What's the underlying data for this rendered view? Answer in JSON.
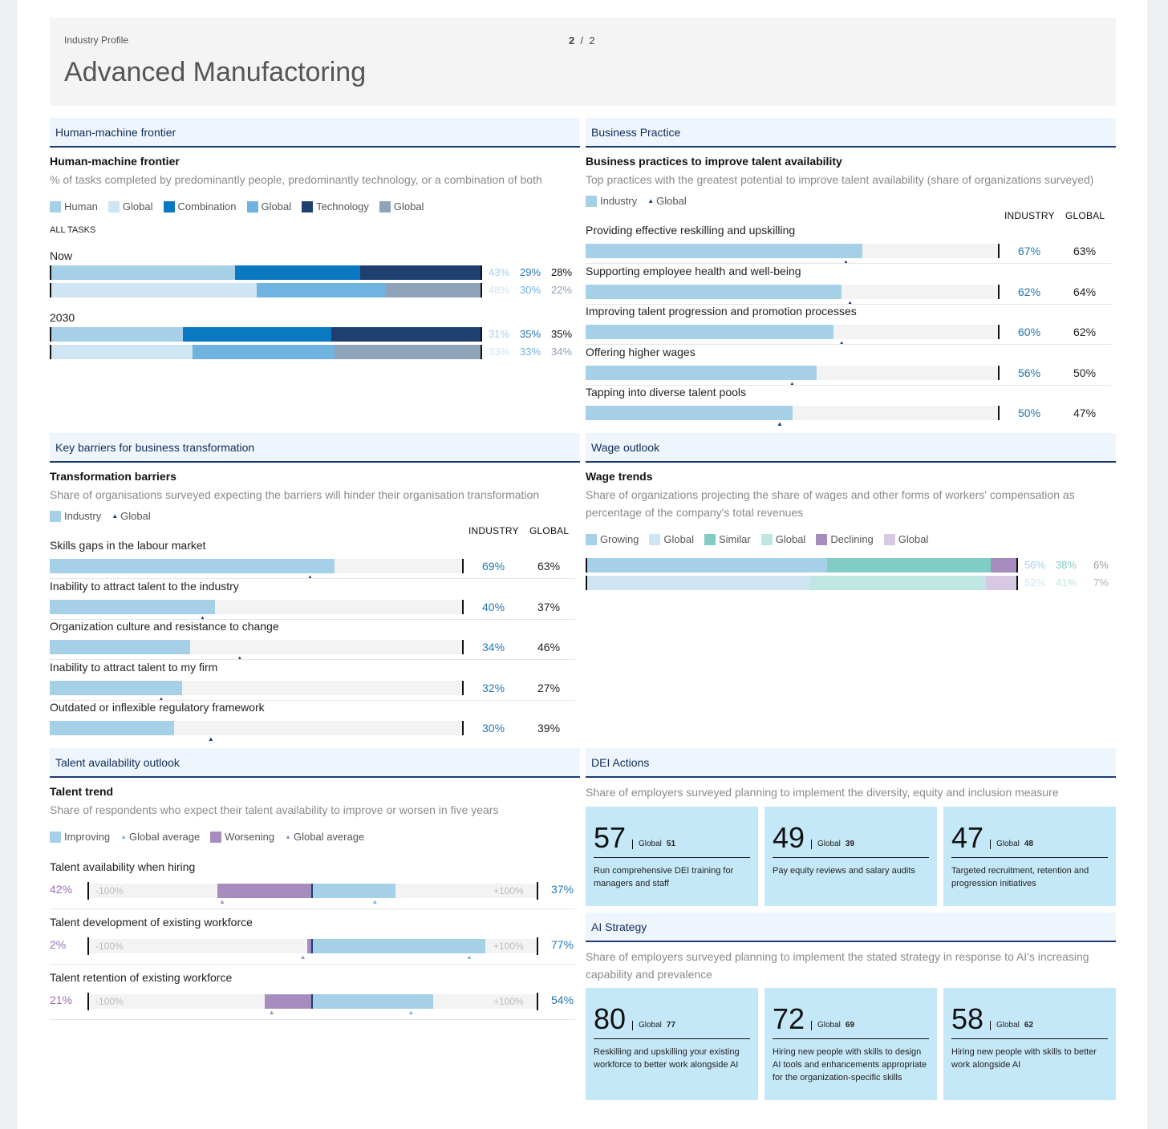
{
  "header": {
    "subtitle": "Industry Profile",
    "title": "Advanced Manufactoring",
    "page_current": "2",
    "page_sep": "/",
    "page_total": "2"
  },
  "hmf": {
    "section_title": "Human-machine frontier",
    "heading": "Human-machine frontier",
    "desc": "% of tasks completed by predominantly people, predominantly technology, or a combination of both",
    "legend": [
      "Human",
      "Global",
      "Combination",
      "Global",
      "Technology",
      "Global"
    ],
    "all_tasks": "ALL TASKS",
    "colors": {
      "human": "#a6cfe8",
      "human_g": "#cfe5f3",
      "combo": "#0a79c2",
      "combo_g": "#6fb3e0",
      "tech": "#1e3f70",
      "tech_g": "#8ea2ba"
    }
  },
  "bp": {
    "section_title": "Business Practice",
    "heading": "Business practices to improve talent availability",
    "desc": "Top practices with the greatest potential to improve talent availability (share of organizations surveyed)",
    "legend_industry": "Industry",
    "legend_global": "Global",
    "col_industry": "INDUSTRY",
    "col_global": "GLOBAL"
  },
  "kb": {
    "section_title": "Key barriers for business transformation",
    "heading": "Transformation barriers",
    "desc": "Share of organisations surveyed expecting the barriers will hinder their organisation transformation",
    "legend_industry": "Industry",
    "legend_global": "Global",
    "col_industry": "INDUSTRY",
    "col_global": "GLOBAL"
  },
  "wo": {
    "section_title": "Wage outlook",
    "heading": "Wage trends",
    "desc": "Share of organizations projecting the share of wages and other forms of workers' compensation as percentage of the company's total revenues",
    "legend": [
      "Growing",
      "Global",
      "Similar",
      "Global",
      "Declining",
      "Global"
    ]
  },
  "ta": {
    "section_title": "Talent availability outlook",
    "heading": "Talent trend",
    "desc": "Share of respondents who expect their talent availability to improve or worsen in five years",
    "legend": [
      "Improving",
      "Global average",
      "Worsening",
      "Global average"
    ],
    "axis_min": "-100%",
    "axis_max": "+100%"
  },
  "dei": {
    "section_title": "DEI Actions",
    "desc": "Share of employers surveyed planning to implement the diversity, equity and inclusion measure",
    "global_word": "Global",
    "cards": [
      {
        "value": "57",
        "global": "51",
        "text": "Run comprehensive DEI training for managers and staff"
      },
      {
        "value": "49",
        "global": "39",
        "text": "Pay equity reviews and salary audits"
      },
      {
        "value": "47",
        "global": "48",
        "text": "Targeted recruitment, retention and progression initiatives"
      }
    ]
  },
  "ai": {
    "section_title": "AI Strategy",
    "desc": "Share of employers surveyed planning to implement the stated strategy in response to AI's increasing capability and prevalence",
    "global_word": "Global",
    "cards": [
      {
        "value": "80",
        "global": "77",
        "text": "Reskilling and upskilling your existing workforce to better work alongside AI"
      },
      {
        "value": "72",
        "global": "69",
        "text": "Hiring new people with skills to design AI tools and enhancements appropriate for the organization-specific skills"
      },
      {
        "value": "58",
        "global": "62",
        "text": "Hiring new people with skills to better work alongside AI"
      }
    ]
  },
  "chart_data": [
    {
      "type": "bar",
      "title": "Human-machine frontier",
      "groups": [
        "Now",
        "2030"
      ],
      "series": [
        {
          "name": "Human",
          "industry": [
            43,
            31
          ],
          "global": [
            48,
            33
          ]
        },
        {
          "name": "Combination",
          "industry": [
            29,
            35
          ],
          "global": [
            30,
            33
          ]
        },
        {
          "name": "Technology",
          "industry": [
            28,
            35
          ],
          "global": [
            22,
            34
          ]
        }
      ],
      "labels": {
        "industry": [
          [
            "43%",
            "29%",
            "28%"
          ],
          [
            "31%",
            "35%",
            "35%"
          ]
        ],
        "global": [
          [
            "48%",
            "30%",
            "22%"
          ],
          [
            "33%",
            "33%",
            "34%"
          ]
        ]
      },
      "stacked": true
    },
    {
      "type": "bar",
      "title": "Business practices to improve talent availability",
      "categories": [
        "Providing effective reskilling and upskilling",
        "Supporting employee health and well-being",
        "Improving talent progression and promotion processes",
        "Offering higher wages",
        "Tapping into diverse talent pools"
      ],
      "series": [
        {
          "name": "Industry",
          "values": [
            67,
            62,
            60,
            56,
            50
          ]
        },
        {
          "name": "Global",
          "values": [
            63,
            64,
            62,
            50,
            47
          ]
        }
      ],
      "labels": {
        "industry": [
          "67%",
          "62%",
          "60%",
          "56%",
          "50%"
        ],
        "global": [
          "63%",
          "64%",
          "62%",
          "50%",
          "47%"
        ]
      },
      "xlim": [
        0,
        100
      ]
    },
    {
      "type": "bar",
      "title": "Transformation barriers",
      "categories": [
        "Skills gaps in the labour market",
        "Inability to attract talent to the industry",
        "Organization culture and resistance to change",
        "Inability to attract talent to my firm",
        "Outdated or inflexible regulatory framework"
      ],
      "series": [
        {
          "name": "Industry",
          "values": [
            69,
            40,
            34,
            32,
            30
          ]
        },
        {
          "name": "Global",
          "values": [
            63,
            37,
            46,
            27,
            39
          ]
        }
      ],
      "labels": {
        "industry": [
          "69%",
          "40%",
          "34%",
          "32%",
          "30%"
        ],
        "global": [
          "63%",
          "37%",
          "46%",
          "27%",
          "39%"
        ]
      },
      "xlim": [
        0,
        100
      ]
    },
    {
      "type": "bar",
      "title": "Wage trends",
      "stacked": true,
      "series": [
        {
          "name": "Growing",
          "industry": 56,
          "global": 52
        },
        {
          "name": "Similar",
          "industry": 38,
          "global": 41
        },
        {
          "name": "Declining",
          "industry": 6,
          "global": 7
        }
      ],
      "labels": {
        "industry": [
          "56%",
          "38%",
          "6%"
        ],
        "global": [
          "52%",
          "41%",
          "7%"
        ]
      },
      "colors": {
        "growing": "#a6cfe8",
        "growing_g": "#cfe5f3",
        "similar": "#7fcdc4",
        "similar_g": "#bfe6e1",
        "declining": "#a78cbf",
        "declining_g": "#d7c9e3"
      }
    },
    {
      "type": "bar",
      "title": "Talent trend",
      "diverging": true,
      "xlim": [
        -100,
        100
      ],
      "categories": [
        "Talent availability when hiring",
        "Talent development of existing workforce",
        "Talent retention of existing workforce"
      ],
      "series": [
        {
          "name": "Worsening",
          "values": [
            42,
            2,
            21
          ],
          "global_average": [
            40,
            4,
            18
          ]
        },
        {
          "name": "Improving",
          "values": [
            37,
            77,
            54
          ],
          "global_average": [
            28,
            70,
            44
          ]
        }
      ],
      "labels": {
        "worsening": [
          "42%",
          "2%",
          "21%"
        ],
        "improving": [
          "37%",
          "77%",
          "54%"
        ]
      },
      "colors": {
        "improving": "#a6cfe8",
        "worsening": "#a78cbf"
      }
    }
  ]
}
